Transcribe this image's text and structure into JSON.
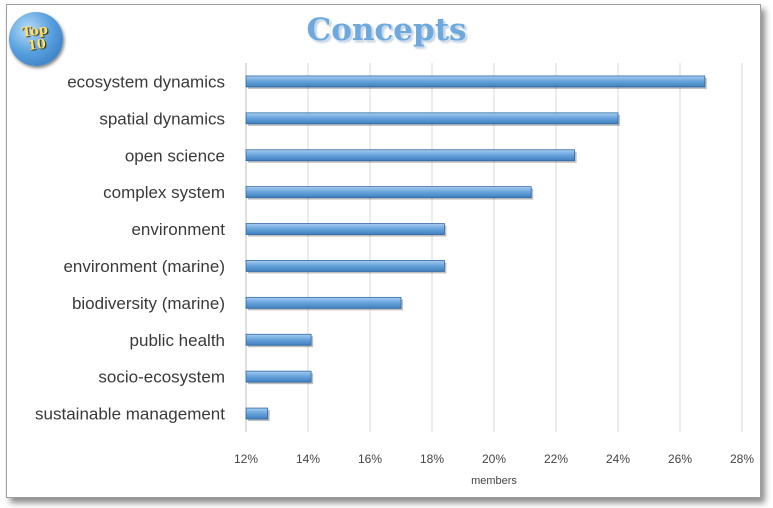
{
  "badge": {
    "line1": "Top",
    "line2": "10"
  },
  "chart_data": {
    "type": "bar",
    "orientation": "horizontal",
    "title": "Concepts",
    "xlabel": "members",
    "ylabel": "",
    "xlim": [
      0.12,
      0.28
    ],
    "xticks": [
      "12%",
      "14%",
      "16%",
      "18%",
      "20%",
      "22%",
      "24%",
      "26%",
      "28%"
    ],
    "grid": true,
    "categories": [
      "ecosystem dynamics",
      "spatial dynamics",
      "open science",
      "complex system",
      "environment",
      "environment (marine)",
      "biodiversity (marine)",
      "public health",
      "socio-ecosystem",
      "sustainable management"
    ],
    "values": [
      0.268,
      0.24,
      0.226,
      0.212,
      0.184,
      0.184,
      0.17,
      0.141,
      0.141,
      0.127
    ],
    "bar_color": "#5b9bd5"
  }
}
